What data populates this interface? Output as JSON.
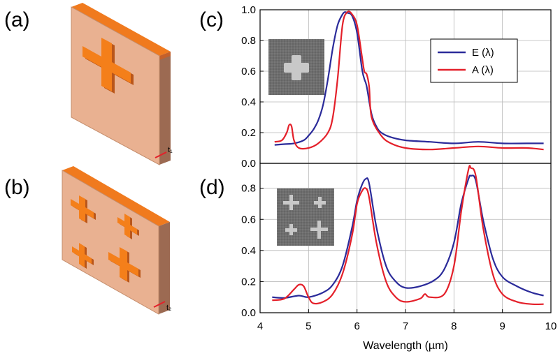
{
  "panels": {
    "a": "(a)",
    "b": "(b)",
    "c": "(c)",
    "d": "(d)"
  },
  "thickness_labels": {
    "t1": "t₁",
    "t2": "t₂"
  },
  "colors": {
    "emissivity": "#2b2b9a",
    "absorptivity": "#e4202a",
    "block_face": "#e9b191",
    "block_side": "#9c6a52",
    "block_back": "#f07a1e",
    "cross": "#f47f1a",
    "cross_shadow": "#b9561a",
    "sem_bg": "#6e6e6e",
    "sem_feature": "#c8c8c8"
  },
  "icons": {
    "single_cross": "single-cross-resonator",
    "quad_cross": "four-cross-resonator",
    "sem_single": "sem-micrograph-single-cross",
    "sem_quad": "sem-micrograph-four-crosses"
  },
  "chart_data": [
    {
      "panel": "(c)",
      "type": "line",
      "xlabel": "",
      "ylabel": "",
      "xlim": [
        4,
        10
      ],
      "ylim": [
        0,
        1.0
      ],
      "yticks": [
        0.0,
        0.2,
        0.4,
        0.6,
        0.8,
        1.0
      ],
      "yticklabels": [
        "0.0",
        "0.2",
        "0.4",
        "0.6",
        "0.8",
        "1.0"
      ],
      "legend_position": "top-right",
      "series": [
        {
          "name": "E (λ)",
          "color": "#2b2b9a",
          "x": [
            4.3,
            4.5,
            4.7,
            4.9,
            5.0,
            5.1,
            5.2,
            5.3,
            5.4,
            5.5,
            5.6,
            5.7,
            5.75,
            5.8,
            5.9,
            6.0,
            6.1,
            6.15,
            6.2,
            6.3,
            6.4,
            6.5,
            6.7,
            7.0,
            7.5,
            8.0,
            8.5,
            9.0,
            9.5,
            9.85
          ],
          "y": [
            0.12,
            0.125,
            0.13,
            0.15,
            0.18,
            0.22,
            0.28,
            0.38,
            0.55,
            0.75,
            0.9,
            0.97,
            0.985,
            0.98,
            0.96,
            0.85,
            0.62,
            0.55,
            0.5,
            0.32,
            0.24,
            0.2,
            0.17,
            0.15,
            0.14,
            0.13,
            0.14,
            0.13,
            0.13,
            0.13
          ]
        },
        {
          "name": "A (λ)",
          "color": "#e4202a",
          "x": [
            4.3,
            4.45,
            4.55,
            4.6,
            4.65,
            4.7,
            4.8,
            5.0,
            5.2,
            5.4,
            5.5,
            5.6,
            5.7,
            5.8,
            5.9,
            6.0,
            6.1,
            6.15,
            6.2,
            6.25,
            6.3,
            6.5,
            6.7,
            7.0,
            7.5,
            8.0,
            8.5,
            9.0,
            9.5,
            9.85
          ],
          "y": [
            0.14,
            0.15,
            0.2,
            0.25,
            0.24,
            0.15,
            0.1,
            0.1,
            0.13,
            0.2,
            0.3,
            0.55,
            0.9,
            0.985,
            0.97,
            0.9,
            0.7,
            0.6,
            0.58,
            0.5,
            0.3,
            0.18,
            0.13,
            0.1,
            0.09,
            0.1,
            0.11,
            0.1,
            0.1,
            0.09
          ]
        }
      ]
    },
    {
      "panel": "(d)",
      "type": "line",
      "xlabel": "Wavelength (µm)",
      "ylabel": "",
      "xlim": [
        4,
        10
      ],
      "ylim": [
        0,
        0.96
      ],
      "xticks": [
        4,
        5,
        6,
        7,
        8,
        9,
        10
      ],
      "xticklabels": [
        "4",
        "5",
        "6",
        "7",
        "8",
        "9",
        "10"
      ],
      "yticks": [
        0.0,
        0.2,
        0.4,
        0.6,
        0.8
      ],
      "yticklabels": [
        "0.0",
        "0.2",
        "0.4",
        "0.6",
        "0.8"
      ],
      "series": [
        {
          "name": "E (λ)",
          "color": "#2b2b9a",
          "x": [
            4.25,
            4.5,
            4.8,
            5.0,
            5.3,
            5.5,
            5.7,
            5.9,
            6.0,
            6.1,
            6.18,
            6.25,
            6.4,
            6.6,
            6.8,
            7.0,
            7.3,
            7.6,
            7.8,
            8.0,
            8.15,
            8.3,
            8.35,
            8.45,
            8.6,
            8.8,
            9.0,
            9.3,
            9.6,
            9.85
          ],
          "y": [
            0.1,
            0.095,
            0.11,
            0.1,
            0.13,
            0.18,
            0.3,
            0.55,
            0.72,
            0.82,
            0.86,
            0.83,
            0.55,
            0.3,
            0.2,
            0.16,
            0.17,
            0.21,
            0.28,
            0.45,
            0.7,
            0.86,
            0.88,
            0.85,
            0.6,
            0.35,
            0.23,
            0.17,
            0.13,
            0.11
          ]
        },
        {
          "name": "A (λ)",
          "color": "#e4202a",
          "x": [
            4.25,
            4.5,
            4.7,
            4.8,
            4.9,
            5.0,
            5.1,
            5.3,
            5.5,
            5.7,
            5.9,
            6.0,
            6.1,
            6.18,
            6.25,
            6.4,
            6.6,
            6.8,
            7.0,
            7.3,
            7.4,
            7.5,
            7.8,
            8.0,
            8.15,
            8.3,
            8.35,
            8.45,
            8.6,
            8.8,
            9.0,
            9.3,
            9.6,
            9.85
          ],
          "y": [
            0.08,
            0.09,
            0.15,
            0.18,
            0.17,
            0.1,
            0.06,
            0.07,
            0.12,
            0.25,
            0.5,
            0.7,
            0.78,
            0.8,
            0.74,
            0.45,
            0.2,
            0.1,
            0.07,
            0.09,
            0.12,
            0.1,
            0.12,
            0.3,
            0.65,
            0.92,
            0.93,
            0.88,
            0.55,
            0.25,
            0.12,
            0.07,
            0.055,
            0.055
          ]
        }
      ]
    }
  ]
}
